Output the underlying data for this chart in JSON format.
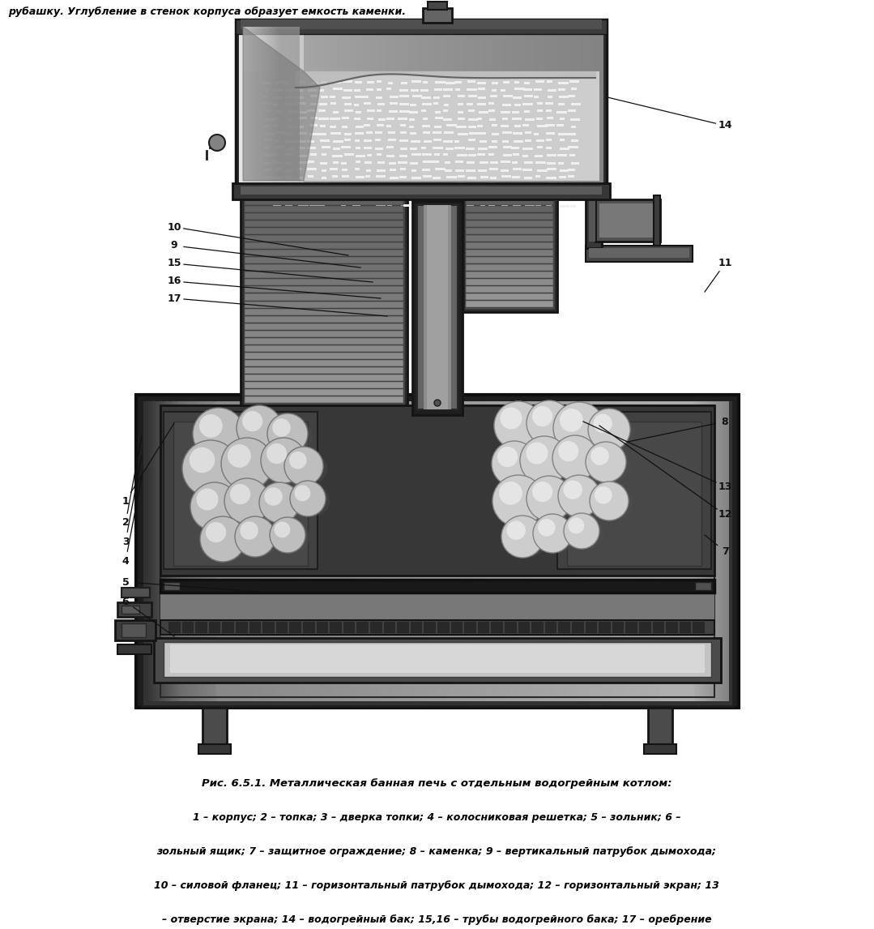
{
  "title_text": "Рис. 6.5.1. Металлическая банная печь с отдельным водогрейным котлом:",
  "caption_line1": "1 – корпус; 2 – топка; 3 – дверка топки; 4 – колосниковая решетка; 5 – зольник; 6 –",
  "caption_line2": "зольный ящик; 7 – защитное ограждение; 8 – каменка; 9 – вертикальный патрубок дымохода;",
  "caption_line3": "10 – силовой фланец; 11 – горизонтальный патрубок дымохода; 12 – горизонтальный экран; 13",
  "caption_line4": "– отверстие экрана; 14 – водогрейный бак; 15,16 – трубы водогрейного бака; 17 – оребрение",
  "header_text": "рубашку. Углубление в стенок корпуса образует емкость каменки.",
  "bg_color": "#ffffff",
  "text_color": "#000000",
  "fig_width": 10.79,
  "fig_height": 11.46
}
